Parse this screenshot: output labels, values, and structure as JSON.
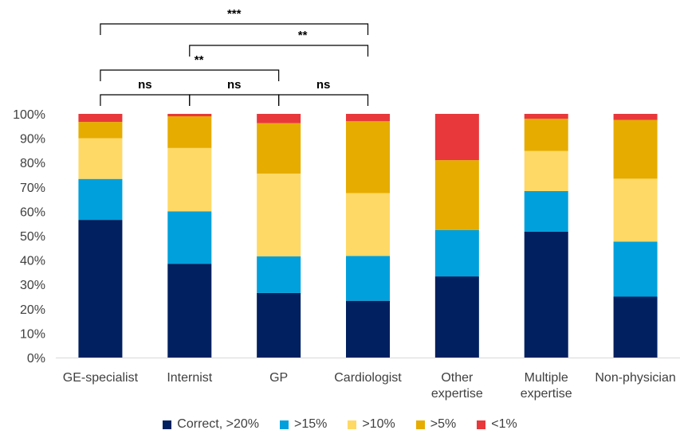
{
  "chart_data": {
    "type": "bar",
    "stacked": true,
    "categories": [
      [
        "GE-specialist"
      ],
      [
        "Internist"
      ],
      [
        "GP"
      ],
      [
        "Cardiologist"
      ],
      [
        "Other",
        "expertise"
      ],
      [
        "Multiple",
        "expertise"
      ],
      [
        "Non-physician"
      ]
    ],
    "series": [
      {
        "name": "Correct, >20%",
        "color": "#002060",
        "values": [
          56.5,
          38.5,
          26.5,
          23.3,
          33.3,
          51.7,
          25.0
        ]
      },
      {
        "name": ">15%",
        "color": "#00A0DC",
        "values": [
          16.8,
          21.5,
          15.0,
          18.4,
          19.0,
          16.6,
          22.6
        ]
      },
      {
        "name": ">10%",
        "color": "#FFD966",
        "values": [
          16.7,
          26.0,
          34.0,
          25.8,
          0.0,
          16.5,
          25.8
        ]
      },
      {
        "name": ">5%",
        "color": "#E6AC00",
        "values": [
          6.7,
          13.0,
          20.7,
          29.5,
          28.7,
          13.2,
          24.1
        ]
      },
      {
        "name": "<1%",
        "color": "#E8383B",
        "values": [
          3.3,
          1.0,
          3.8,
          3.0,
          19.0,
          2.0,
          2.5
        ]
      }
    ],
    "y_ticks": [
      "0%",
      "10%",
      "20%",
      "30%",
      "40%",
      "50%",
      "60%",
      "70%",
      "80%",
      "90%",
      "100%"
    ],
    "ylim": [
      0,
      100
    ],
    "legend_position": "bottom",
    "significance": [
      {
        "from": 0,
        "to": 1,
        "label": "ns"
      },
      {
        "from": 1,
        "to": 2,
        "label": "ns"
      },
      {
        "from": 2,
        "to": 3,
        "label": "ns"
      },
      {
        "from": 0,
        "to": 2,
        "label": "**"
      },
      {
        "from": 1,
        "to": 3,
        "label": "**"
      },
      {
        "from": 0,
        "to": 3,
        "label": "***"
      }
    ]
  }
}
